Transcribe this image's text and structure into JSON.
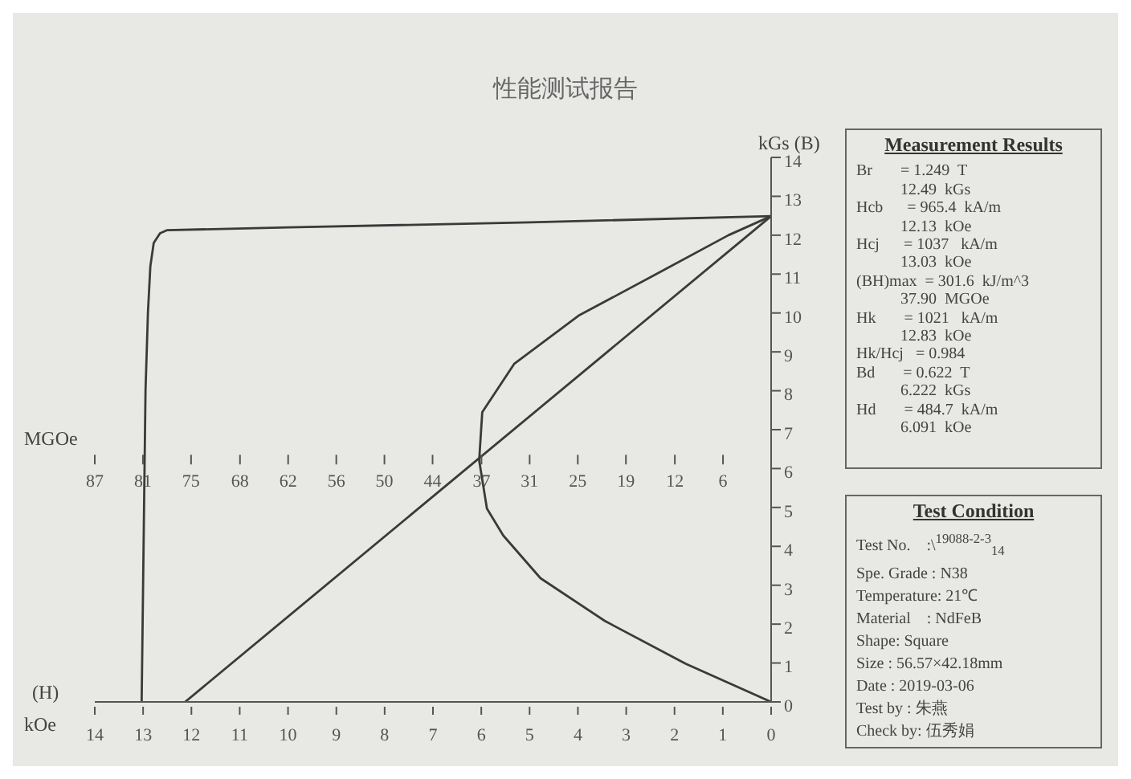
{
  "chart_data": {
    "type": "line",
    "title": "性能测试报告",
    "xlabel": "kOe",
    "ylabel": "kGs (B)",
    "x2label": "MGOe",
    "xlim": [
      14,
      0
    ],
    "xticks": [
      14,
      13,
      12,
      11,
      10,
      9,
      8,
      7,
      6,
      5,
      4,
      3,
      2,
      1,
      0
    ],
    "ylim": [
      0,
      14
    ],
    "yticks": [
      0,
      1,
      2,
      3,
      4,
      5,
      6,
      7,
      8,
      9,
      10,
      11,
      12,
      13,
      14
    ],
    "x2lim": [
      87.1,
      0
    ],
    "x2ticks": [
      {
        "value": 87.1,
        "label": "87"
      },
      {
        "value": 80.9,
        "label": "81"
      },
      {
        "value": 74.7,
        "label": "75"
      },
      {
        "value": 68.4,
        "label": "68"
      },
      {
        "value": 62.2,
        "label": "62"
      },
      {
        "value": 56.0,
        "label": "56"
      },
      {
        "value": 49.8,
        "label": "50"
      },
      {
        "value": 43.6,
        "label": "44"
      },
      {
        "value": 37.3,
        "label": "37"
      },
      {
        "value": 31.1,
        "label": "31"
      },
      {
        "value": 24.9,
        "label": "25"
      },
      {
        "value": 18.7,
        "label": "19"
      },
      {
        "value": 12.4,
        "label": "12"
      },
      {
        "value": 6.2,
        "label": "6"
      }
    ],
    "marker": "none",
    "line_style": "solid",
    "annotations": [
      "(H)",
      "Measurement Results\nBr       = 1.249  T\n           12.49  kGs\nHcb      = 965.4  kA/m\n           12.13  kOe\nHcj      = 1037   kA/m\n           13.03  kOe\n(BH)max  = 301.6  kJ/m^3\n           37.90  MGOe\nHk       = 1021   kA/m\n           12.83  kOe\nHk/Hcj   = 0.984\nBd       = 0.622  T\n           6.222  kGs\nHd       = 484.7  kA/m\n           6.091  kOe",
      "Test Condition\nTest No.    :\\$^{19088-2-3}$$_{14}$\nSpe. Grade : N38\nTemperature: 21℃\nMaterial    : NdFeB\nShape: Square\nSize : 56.57×42.18mm\nDate : 2019-03-06\nTest by : 朱燕\nCheck by: 伍秀娟"
    ],
    "series": [
      {
        "color": "#3a3a3a",
        "x": [
          13.03,
          13.0,
          12.95,
          12.9,
          12.85,
          12.78,
          12.65,
          12.5,
          10,
          5,
          0
        ],
        "values": [
          0,
          3,
          8,
          10,
          11.2,
          11.8,
          12.05,
          12.13,
          12.2,
          12.33,
          12.49
        ]
      },
      {
        "color": "#3a3a3a",
        "x": [
          12.13,
          0
        ],
        "values": [
          0,
          12.49
        ]
      },
      {
        "color": "#3a3a3a",
        "axis": "x2",
        "x": [
          0,
          11.0,
          21.4,
          29.7,
          34.5,
          36.6,
          37.6,
          37.2,
          33.1,
          24.8,
          14.5,
          5.5,
          0
        ],
        "values": [
          0,
          0.98,
          2.08,
          3.18,
          4.28,
          4.97,
          6.21,
          7.45,
          8.69,
          9.93,
          11.03,
          12.0,
          12.49
        ]
      }
    ]
  }
}
